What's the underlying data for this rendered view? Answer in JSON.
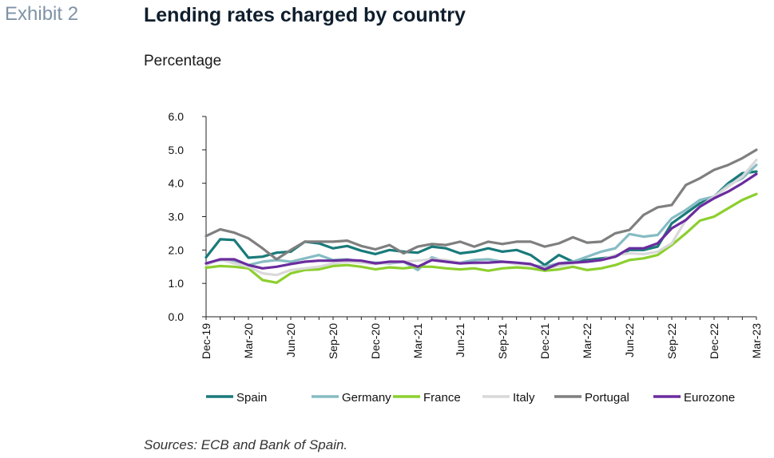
{
  "exhibit_label": "Exhibit 2",
  "source_text": "Sources: ECB and Bank of Spain.",
  "chart_data": {
    "type": "line",
    "title": "Lending rates charged by country",
    "subtitle": "Percentage",
    "ylim": [
      0,
      6
    ],
    "yticks": [
      "0.0",
      "1.0",
      "2.0",
      "3.0",
      "4.0",
      "5.0",
      "6.0"
    ],
    "xtick_labels": [
      "Dec-19",
      "Mar-20",
      "Jun-20",
      "Sep-20",
      "Dec-20",
      "Mar-21",
      "Jun-21",
      "Sep-21",
      "Dec-21",
      "Mar-22",
      "Jun-22",
      "Sep-22",
      "Dec-22",
      "Mar-23"
    ],
    "legend_position": "bottom",
    "grid": false,
    "x": [
      "Dec-19",
      "Jan-20",
      "Feb-20",
      "Mar-20",
      "Apr-20",
      "May-20",
      "Jun-20",
      "Jul-20",
      "Aug-20",
      "Sep-20",
      "Oct-20",
      "Nov-20",
      "Dec-20",
      "Jan-21",
      "Feb-21",
      "Mar-21",
      "Apr-21",
      "May-21",
      "Jun-21",
      "Jul-21",
      "Aug-21",
      "Sep-21",
      "Oct-21",
      "Nov-21",
      "Dec-21",
      "Jan-22",
      "Feb-22",
      "Mar-22",
      "Apr-22",
      "May-22",
      "Jun-22",
      "Jul-22",
      "Aug-22",
      "Sep-22",
      "Oct-22",
      "Nov-22",
      "Dec-22",
      "Jan-23",
      "Feb-23",
      "Mar-23"
    ],
    "series": [
      {
        "name": "Spain",
        "color": "#1a7a7a",
        "values": [
          1.78,
          2.32,
          2.3,
          1.77,
          1.8,
          1.92,
          1.95,
          2.25,
          2.2,
          2.05,
          2.12,
          1.98,
          1.88,
          2.0,
          1.95,
          1.92,
          2.1,
          2.05,
          1.9,
          1.95,
          2.05,
          1.95,
          2.0,
          1.85,
          1.55,
          1.85,
          1.65,
          1.7,
          1.75,
          1.8,
          2.0,
          2.0,
          2.1,
          2.8,
          3.1,
          3.4,
          3.6,
          4.0,
          4.3,
          4.35
        ]
      },
      {
        "name": "Germany",
        "color": "#86bcc4",
        "values": [
          1.6,
          1.7,
          1.68,
          1.55,
          1.65,
          1.7,
          1.65,
          1.75,
          1.85,
          1.7,
          1.72,
          1.65,
          1.62,
          1.6,
          1.65,
          1.4,
          1.78,
          1.65,
          1.62,
          1.7,
          1.72,
          1.65,
          1.6,
          1.55,
          1.5,
          1.6,
          1.65,
          1.8,
          1.95,
          2.05,
          2.48,
          2.4,
          2.45,
          2.95,
          3.2,
          3.5,
          3.6,
          3.95,
          4.15,
          4.55
        ]
      },
      {
        "name": "France",
        "color": "#8ccf2e",
        "values": [
          1.47,
          1.52,
          1.5,
          1.45,
          1.1,
          1.02,
          1.3,
          1.4,
          1.42,
          1.52,
          1.55,
          1.5,
          1.42,
          1.48,
          1.45,
          1.5,
          1.5,
          1.45,
          1.42,
          1.45,
          1.38,
          1.45,
          1.48,
          1.45,
          1.38,
          1.42,
          1.5,
          1.4,
          1.45,
          1.55,
          1.7,
          1.75,
          1.85,
          2.15,
          2.5,
          2.88,
          3.0,
          3.25,
          3.5,
          3.68
        ]
      },
      {
        "name": "Italy",
        "color": "#d9d9d9",
        "values": [
          1.55,
          1.72,
          1.6,
          1.5,
          1.3,
          1.25,
          1.4,
          1.45,
          1.5,
          1.6,
          1.65,
          1.62,
          1.58,
          1.62,
          1.65,
          1.68,
          1.72,
          1.7,
          1.62,
          1.6,
          1.62,
          1.65,
          1.58,
          1.55,
          1.45,
          1.52,
          1.6,
          1.65,
          1.7,
          1.85,
          1.9,
          1.88,
          1.95,
          2.2,
          2.9,
          3.3,
          3.6,
          3.9,
          4.2,
          4.7
        ]
      },
      {
        "name": "Portugal",
        "color": "#7f7f7f",
        "values": [
          2.42,
          2.62,
          2.52,
          2.35,
          2.05,
          1.72,
          2.0,
          2.25,
          2.25,
          2.25,
          2.28,
          2.12,
          2.02,
          2.15,
          1.9,
          2.1,
          2.18,
          2.15,
          2.25,
          2.1,
          2.25,
          2.18,
          2.25,
          2.25,
          2.1,
          2.2,
          2.38,
          2.22,
          2.25,
          2.5,
          2.6,
          3.05,
          3.28,
          3.35,
          3.95,
          4.15,
          4.4,
          4.55,
          4.75,
          5.0
        ]
      },
      {
        "name": "Eurozone",
        "color": "#6a2c9e",
        "values": [
          1.6,
          1.72,
          1.72,
          1.55,
          1.45,
          1.5,
          1.58,
          1.65,
          1.68,
          1.68,
          1.7,
          1.68,
          1.6,
          1.65,
          1.65,
          1.5,
          1.7,
          1.65,
          1.6,
          1.62,
          1.62,
          1.65,
          1.62,
          1.58,
          1.42,
          1.6,
          1.62,
          1.65,
          1.7,
          1.8,
          2.05,
          2.05,
          2.2,
          2.65,
          2.9,
          3.3,
          3.55,
          3.75,
          4.0,
          4.28
        ]
      }
    ]
  }
}
